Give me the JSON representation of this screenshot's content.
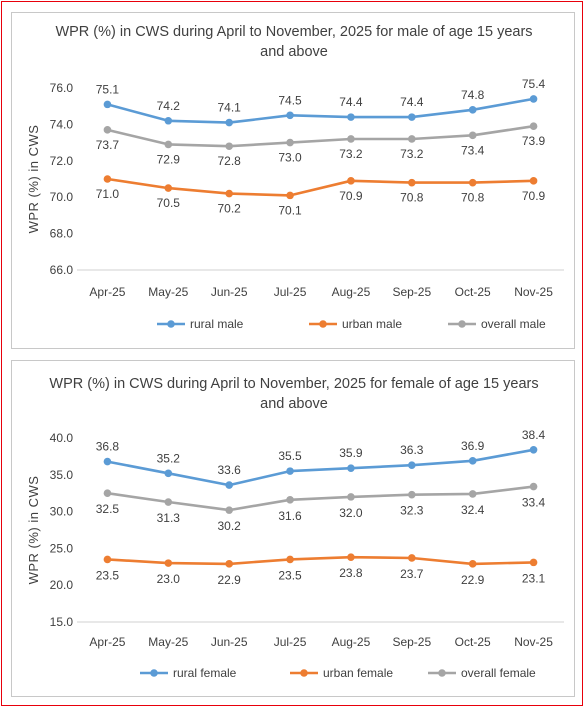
{
  "chart_data": [
    {
      "type": "line",
      "title_lines": [
        "WPR (%) in CWS during April to November, 2025 for male of age 15 years",
        "and above"
      ],
      "xlabel": "",
      "ylabel": "WPR (%) in CWS",
      "categories": [
        "Apr-25",
        "May-25",
        "Jun-25",
        "Jul-25",
        "Aug-25",
        "Sep-25",
        "Oct-25",
        "Nov-25"
      ],
      "ylim": [
        66.0,
        76.0
      ],
      "yticks": [
        "66.0",
        "68.0",
        "70.0",
        "72.0",
        "74.0",
        "76.0"
      ],
      "ytick_values": [
        66,
        68,
        70,
        72,
        74,
        76
      ],
      "legend_position": "bottom",
      "grid": false,
      "series": [
        {
          "name": "rural male",
          "color": "#5b9bd5",
          "values": [
            75.1,
            74.2,
            74.1,
            74.5,
            74.4,
            74.4,
            74.8,
            75.4
          ],
          "labels": [
            "75.1",
            "74.2",
            "74.1",
            "74.5",
            "74.4",
            "74.4",
            "74.8",
            "75.4"
          ],
          "label_position": "above"
        },
        {
          "name": "urban male",
          "color": "#ed7d31",
          "values": [
            71.0,
            70.5,
            70.2,
            70.1,
            70.9,
            70.8,
            70.8,
            70.9
          ],
          "labels": [
            "71.0",
            "70.5",
            "70.2",
            "70.1",
            "70.9",
            "70.8",
            "70.8",
            "70.9"
          ],
          "label_position": "below"
        },
        {
          "name": "overall male",
          "color": "#a5a5a5",
          "values": [
            73.7,
            72.9,
            72.8,
            73.0,
            73.2,
            73.2,
            73.4,
            73.9
          ],
          "labels": [
            "73.7",
            "72.9",
            "72.8",
            "73.0",
            "73.2",
            "73.2",
            "73.4",
            "73.9"
          ],
          "label_position": "below"
        }
      ]
    },
    {
      "type": "line",
      "title_lines": [
        "WPR (%) in CWS during April to November, 2025 for female of age 15 years",
        "and above"
      ],
      "xlabel": "",
      "ylabel": "WPR (%) in CWS",
      "categories": [
        "Apr-25",
        "May-25",
        "Jun-25",
        "Jul-25",
        "Aug-25",
        "Sep-25",
        "Oct-25",
        "Nov-25"
      ],
      "ylim": [
        15.0,
        40.0
      ],
      "yticks": [
        "15.0",
        "20.0",
        "25.0",
        "30.0",
        "35.0",
        "40.0"
      ],
      "ytick_values": [
        15,
        20,
        25,
        30,
        35,
        40
      ],
      "legend_position": "bottom",
      "grid": false,
      "series": [
        {
          "name": "rural female",
          "color": "#5b9bd5",
          "values": [
            36.8,
            35.2,
            33.6,
            35.5,
            35.9,
            36.3,
            36.9,
            38.4
          ],
          "labels": [
            "36.8",
            "35.2",
            "33.6",
            "35.5",
            "35.9",
            "36.3",
            "36.9",
            "38.4"
          ],
          "label_position": "above"
        },
        {
          "name": "urban female",
          "color": "#ed7d31",
          "values": [
            23.5,
            23.0,
            22.9,
            23.5,
            23.8,
            23.7,
            22.9,
            23.1
          ],
          "labels": [
            "23.5",
            "23.0",
            "22.9",
            "23.5",
            "23.8",
            "23.7",
            "22.9",
            "23.1"
          ],
          "label_position": "below"
        },
        {
          "name": "overall female",
          "color": "#a5a5a5",
          "values": [
            32.5,
            31.3,
            30.2,
            31.6,
            32.0,
            32.3,
            32.4,
            33.4
          ],
          "labels": [
            "32.5",
            "31.3",
            "30.2",
            "31.6",
            "32.0",
            "32.3",
            "32.4",
            "33.4"
          ],
          "label_position": "below"
        }
      ]
    }
  ]
}
